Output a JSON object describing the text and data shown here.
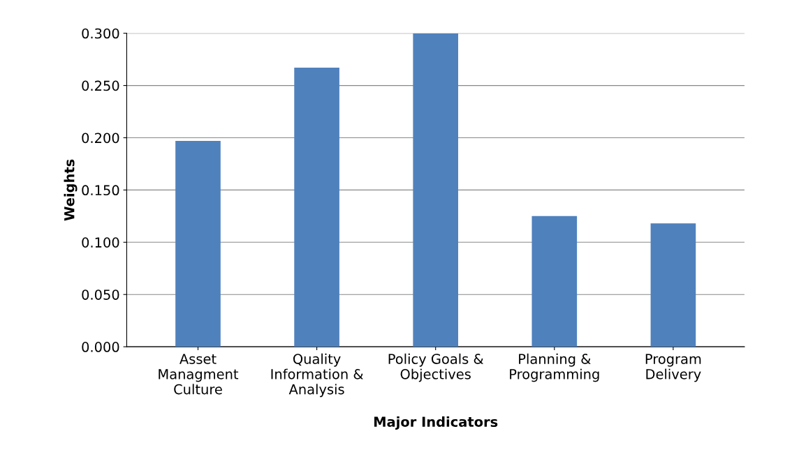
{
  "chart_data": {
    "type": "bar",
    "xlabel": "Major Indicators",
    "ylabel": "Weights",
    "categories": [
      "Asset\nManagment\nCulture",
      "Quality\nInformation &\nAnalysis",
      "Policy Goals &\nObjectives",
      "Planning &\nProgramming",
      "Program\nDelivery"
    ],
    "values": [
      0.197,
      0.267,
      0.3,
      0.125,
      0.118
    ],
    "color": "#4f81bd",
    "ylim": [
      0,
      0.3
    ],
    "yticks": [
      {
        "value": 0,
        "label": "0.000"
      },
      {
        "value": 0.05,
        "label": "0.050"
      },
      {
        "value": 0.1,
        "label": "0.100"
      },
      {
        "value": 0.15,
        "label": "0.150"
      },
      {
        "value": 0.2,
        "label": "0.200"
      },
      {
        "value": 0.25,
        "label": "0.250"
      },
      {
        "value": 0.3,
        "label": "0.300"
      }
    ],
    "grid": "y",
    "legend": false
  }
}
